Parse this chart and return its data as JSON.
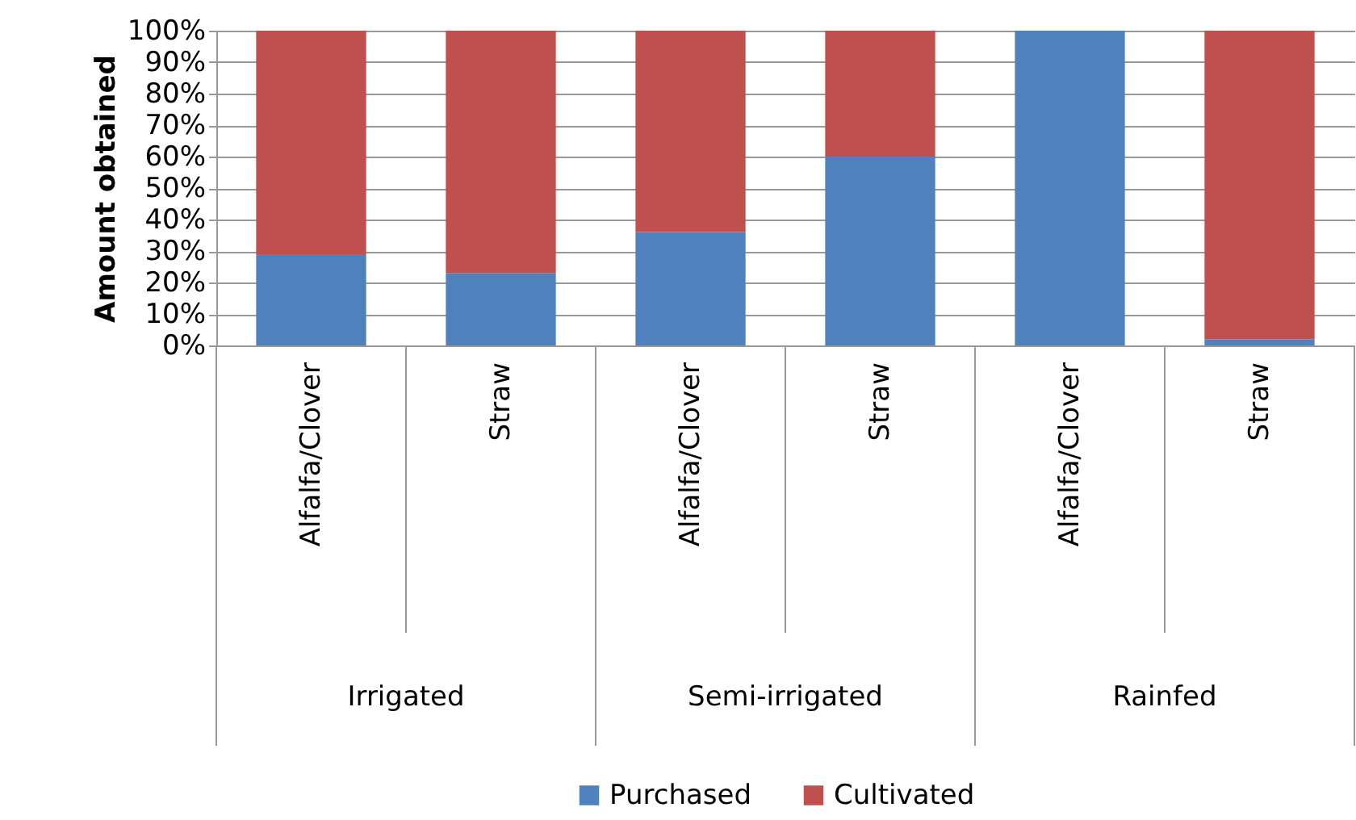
{
  "chart_data": {
    "type": "bar",
    "stacked": true,
    "ylabel": "Amount obtained",
    "categories": [
      "Alfalfa/Clover",
      "Straw",
      "Alfalfa/Clover",
      "Straw",
      "Alfalfa/Clover",
      "Straw"
    ],
    "series": [
      {
        "name": "Purchased",
        "color": "#4f81bd",
        "values": [
          29,
          23,
          36,
          60,
          100,
          2
        ]
      },
      {
        "name": "Cultivated",
        "color": "#c0504d",
        "values": [
          71,
          77,
          64,
          40,
          0,
          98
        ]
      }
    ],
    "ylim": [
      0,
      100
    ],
    "yticks": [
      {
        "value": 0,
        "label": "0%"
      },
      {
        "value": 10,
        "label": "10%"
      },
      {
        "value": 20,
        "label": "20%"
      },
      {
        "value": 30,
        "label": "30%"
      },
      {
        "value": 40,
        "label": "40%"
      },
      {
        "value": 50,
        "label": "50%"
      },
      {
        "value": 60,
        "label": "60%"
      },
      {
        "value": 70,
        "label": "70%"
      },
      {
        "value": 80,
        "label": "80%"
      },
      {
        "value": 90,
        "label": "90%"
      },
      {
        "value": 100,
        "label": "100%"
      }
    ],
    "annotations": [
      "Irrigated",
      "Semi-irrigated",
      "Rainfed"
    ],
    "grid": "y",
    "legend": "bottom"
  }
}
